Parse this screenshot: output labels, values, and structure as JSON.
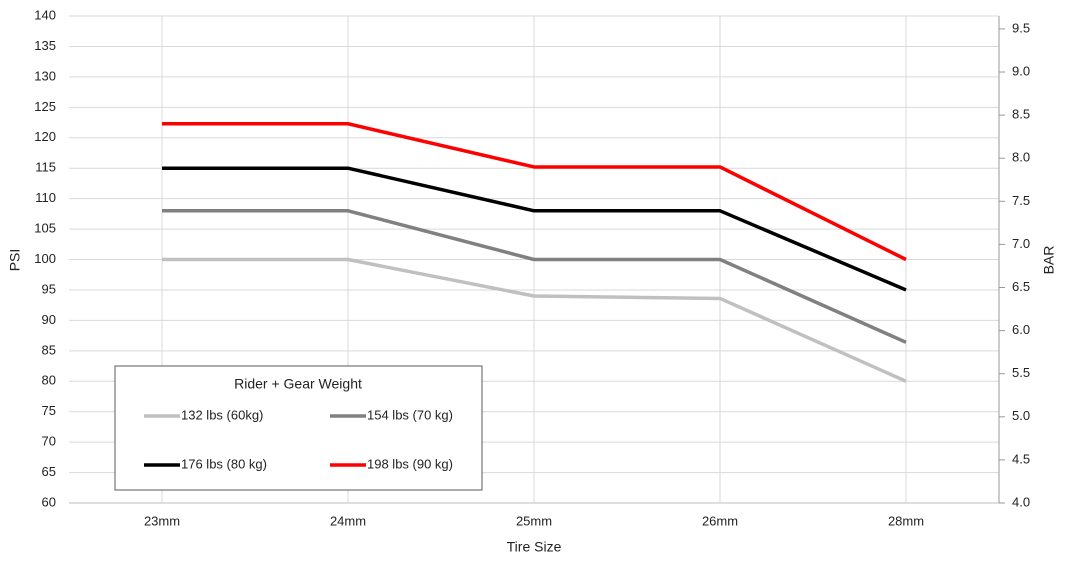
{
  "chart_data": {
    "type": "line",
    "categories": [
      "23mm",
      "24mm",
      "25mm",
      "26mm",
      "28mm"
    ],
    "x_label": "Tire Size",
    "y_label": "PSI",
    "y2_label": "BAR",
    "legend_title": "Rider + Gear Weight",
    "legend": "lower left",
    "grid": true,
    "ylim": [
      60,
      140
    ],
    "yticks": [
      60,
      65,
      70,
      75,
      80,
      85,
      90,
      95,
      100,
      105,
      110,
      115,
      120,
      125,
      130,
      135,
      140
    ],
    "y2lim": [
      4.0,
      9.65
    ],
    "y2ticks": [
      {
        "value": 4.0,
        "label": "4.0"
      },
      4.5,
      {
        "value": 5.0,
        "label": "5.0"
      },
      5.5,
      {
        "value": 6.0,
        "label": "6.0"
      },
      6.5,
      {
        "value": 7.0,
        "label": "7.0"
      },
      7.5,
      {
        "value": 8.0,
        "label": "8.0"
      },
      8.5,
      {
        "value": 9.0,
        "label": "9.0"
      },
      9.5
    ],
    "series": [
      {
        "name": "132 lbs (60kg)",
        "color": "#c0c0c0",
        "values": [
          100,
          100,
          94,
          93.6,
          80
        ]
      },
      {
        "name": "154 lbs (70 kg)",
        "color": "#808080",
        "values": [
          108,
          108,
          100,
          100,
          86.4
        ]
      },
      {
        "name": "176 lbs (80 kg)",
        "color": "#000000",
        "values": [
          115,
          115,
          108,
          108,
          95
        ]
      },
      {
        "name": "198 lbs (90 kg)",
        "color": "#ff0000",
        "values": [
          122.3,
          122.3,
          115.2,
          115.2,
          100
        ]
      }
    ]
  }
}
